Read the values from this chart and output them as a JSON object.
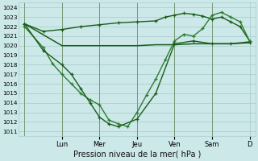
{
  "bg_color": "#cce8e8",
  "grid_color": "#aacfcf",
  "line_color_dark": "#1a5c1a",
  "line_color_medium": "#2e7d2e",
  "xlabel": "Pression niveau de la mer( hPa )",
  "ylim": [
    1010.5,
    1024.5
  ],
  "yticks": [
    1011,
    1012,
    1013,
    1014,
    1015,
    1016,
    1017,
    1018,
    1019,
    1020,
    1021,
    1022,
    1023,
    1024
  ],
  "day_labels": [
    "Lun",
    "Mer",
    "Jeu",
    "Ven",
    "Sam",
    "D"
  ],
  "xlim_data": [
    0,
    12
  ],
  "series_flat_x": [
    0,
    2,
    3,
    4,
    5,
    6,
    7,
    8,
    9,
    10,
    11,
    12
  ],
  "series_flat_y": [
    1022.3,
    1020.0,
    1020.0,
    1020.0,
    1020.0,
    1020.0,
    1020.1,
    1020.1,
    1020.2,
    1020.2,
    1020.2,
    1020.4
  ],
  "series_upper_x": [
    0,
    1,
    2,
    3,
    4,
    5,
    6,
    7,
    7.5,
    8,
    8.5,
    9,
    9.5,
    10,
    10.5,
    11,
    11.5,
    12
  ],
  "series_upper_y": [
    1022.3,
    1021.5,
    1021.7,
    1022.0,
    1022.2,
    1022.4,
    1022.5,
    1022.6,
    1023.0,
    1023.2,
    1023.4,
    1023.3,
    1023.1,
    1022.8,
    1023.0,
    1022.5,
    1022.0,
    1020.5
  ],
  "series_v_x": [
    0,
    1,
    1.5,
    2,
    2.5,
    3,
    3.5,
    4,
    4.5,
    5,
    5.5,
    6,
    6.5,
    7,
    7.5,
    8,
    8.5,
    9,
    9.5,
    10,
    10.5,
    11,
    11.5,
    12
  ],
  "series_v_y": [
    1022.0,
    1019.8,
    1018.1,
    1017.0,
    1016.0,
    1015.0,
    1014.3,
    1013.8,
    1012.2,
    1011.8,
    1011.5,
    1013.0,
    1014.8,
    1016.5,
    1018.5,
    1020.5,
    1021.2,
    1021.0,
    1021.8,
    1023.2,
    1023.5,
    1023.0,
    1022.5,
    1020.5
  ],
  "series_v2_x": [
    0,
    1,
    2,
    2.5,
    3,
    3.5,
    4,
    4.5,
    5,
    6,
    7,
    8,
    9,
    10,
    11,
    12
  ],
  "series_v2_y": [
    1022.3,
    1019.5,
    1018.0,
    1017.0,
    1015.5,
    1014.0,
    1012.5,
    1011.8,
    1011.5,
    1012.3,
    1015.0,
    1020.2,
    1020.5,
    1020.2,
    1020.2,
    1020.3
  ]
}
